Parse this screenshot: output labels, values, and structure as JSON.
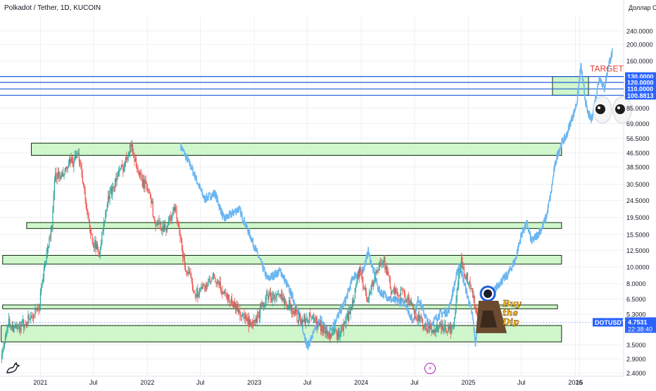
{
  "header": {
    "title": "Polkadot / Tether, 1D, KUCOIN",
    "currency": "Доллар США"
  },
  "chart_data": {
    "type": "line",
    "scale": "log",
    "ylim": [
      2.3,
      290
    ],
    "y_ticks": [
      "240.0000",
      "200.0000",
      "160.0000",
      "85.0000",
      "69.0000",
      "56.5000",
      "46.5000",
      "38.5000",
      "30.5000",
      "24.5000",
      "19.5000",
      "15.5000",
      "12.5000",
      "10.0000",
      "8.0000",
      "6.5000",
      "5.3000",
      "3.5000",
      "2.9000",
      "2.4000"
    ],
    "x_ticks": [
      {
        "label": "2021",
        "date": "2021-01-01"
      },
      {
        "label": "Jul",
        "date": "2021-07-01"
      },
      {
        "label": "2022",
        "date": "2022-01-01"
      },
      {
        "label": "Jul",
        "date": "2022-07-01"
      },
      {
        "label": "2023",
        "date": "2023-01-01"
      },
      {
        "label": "Jul",
        "date": "2023-07-01"
      },
      {
        "label": "2024",
        "date": "2024-01-01"
      },
      {
        "label": "Jul",
        "date": "2024-07-01"
      },
      {
        "label": "2025",
        "date": "2025-01-01"
      },
      {
        "label": "Jul",
        "date": "2025-07-01"
      },
      {
        "label": "2026",
        "date": "2026-01-01"
      },
      {
        "label": "15",
        "date": "2026-01-15"
      }
    ],
    "level_lines": [
      {
        "value": 130,
        "label": "130.0000"
      },
      {
        "value": 120,
        "label": "120.0000"
      },
      {
        "value": 110,
        "label": "110.0000"
      },
      {
        "value": 100.8813,
        "label": "100.8813"
      }
    ],
    "zones": [
      {
        "low": 100.88,
        "high": 130,
        "x_start": "2025-10-15",
        "x_end": "2026-02-15"
      },
      {
        "low": 45,
        "high": 53,
        "x_start": "2020-12-01",
        "x_end": "2025-11-15"
      },
      {
        "low": 16.8,
        "high": 18.2,
        "x_start": "2020-11-15",
        "x_end": "2025-11-15"
      },
      {
        "low": 10.4,
        "high": 11.7,
        "x_start": "2020-08-25",
        "x_end": "2025-11-15"
      },
      {
        "low": 5.7,
        "high": 6.0,
        "x_start": "2020-08-25",
        "x_end": "2025-11-01"
      },
      {
        "low": 3.65,
        "high": 4.55,
        "x_start": "2020-08-20",
        "x_end": "2025-11-15"
      }
    ],
    "price_series": {
      "name": "DOTUSDT",
      "points": [
        [
          "2020-08-22",
          2.9
        ],
        [
          "2020-09-10",
          4.8
        ],
        [
          "2020-10-15",
          4.2
        ],
        [
          "2020-11-20",
          5.0
        ],
        [
          "2020-12-25",
          5.5
        ],
        [
          "2021-01-10",
          9.0
        ],
        [
          "2021-02-10",
          18.0
        ],
        [
          "2021-02-20",
          35.0
        ],
        [
          "2021-03-15",
          33.0
        ],
        [
          "2021-04-10",
          40.0
        ],
        [
          "2021-05-15",
          44.0
        ],
        [
          "2021-06-20",
          15.5
        ],
        [
          "2021-07-20",
          12.0
        ],
        [
          "2021-08-20",
          25.0
        ],
        [
          "2021-09-20",
          34.0
        ],
        [
          "2021-10-15",
          40.0
        ],
        [
          "2021-11-04",
          53.0
        ],
        [
          "2021-12-10",
          32.0
        ],
        [
          "2022-01-10",
          28.0
        ],
        [
          "2022-01-25",
          18.0
        ],
        [
          "2022-03-05",
          17.0
        ],
        [
          "2022-04-05",
          22.0
        ],
        [
          "2022-05-10",
          10.0
        ],
        [
          "2022-06-15",
          7.0
        ],
        [
          "2022-08-15",
          8.5
        ],
        [
          "2022-10-15",
          6.3
        ],
        [
          "2022-12-25",
          4.4
        ],
        [
          "2023-02-15",
          6.8
        ],
        [
          "2023-04-15",
          6.5
        ],
        [
          "2023-06-10",
          4.8
        ],
        [
          "2023-07-15",
          5.2
        ],
        [
          "2023-09-10",
          4.0
        ],
        [
          "2023-10-20",
          4.1
        ],
        [
          "2023-11-25",
          5.5
        ],
        [
          "2023-12-25",
          9.5
        ],
        [
          "2024-01-20",
          6.5
        ],
        [
          "2024-03-15",
          11.5
        ],
        [
          "2024-04-15",
          7.0
        ],
        [
          "2024-05-20",
          7.2
        ],
        [
          "2024-07-05",
          5.3
        ],
        [
          "2024-08-10",
          4.3
        ],
        [
          "2024-09-25",
          4.4
        ],
        [
          "2024-11-10",
          4.3
        ],
        [
          "2024-12-05",
          11.0
        ],
        [
          "2025-01-10",
          7.5
        ],
        [
          "2025-02-05",
          4.8
        ],
        [
          "2025-02-20",
          5.0
        ]
      ]
    },
    "projection_series": {
      "points": [
        [
          "2022-04-25",
          51
        ],
        [
          "2022-06-01",
          38
        ],
        [
          "2022-07-15",
          25
        ],
        [
          "2022-08-20",
          27
        ],
        [
          "2022-09-20",
          19
        ],
        [
          "2022-11-10",
          22
        ],
        [
          "2022-12-20",
          15
        ],
        [
          "2023-01-20",
          11
        ],
        [
          "2023-02-15",
          8.5
        ],
        [
          "2023-04-01",
          9.5
        ],
        [
          "2023-05-15",
          6.5
        ],
        [
          "2023-06-15",
          4.5
        ],
        [
          "2023-07-01",
          3.4
        ],
        [
          "2023-08-15",
          5
        ],
        [
          "2023-09-10",
          4.1
        ],
        [
          "2023-10-15",
          5.2
        ],
        [
          "2023-11-10",
          6.5
        ],
        [
          "2023-12-05",
          8.8
        ],
        [
          "2024-01-10",
          9.8
        ],
        [
          "2024-01-25",
          12.3
        ],
        [
          "2024-03-01",
          7.3
        ],
        [
          "2024-04-15",
          6.4
        ],
        [
          "2024-05-30",
          6.2
        ],
        [
          "2024-06-25",
          4.8
        ],
        [
          "2024-07-15",
          6.6
        ],
        [
          "2024-08-20",
          4.5
        ],
        [
          "2024-09-25",
          5.3
        ],
        [
          "2024-10-25",
          5.5
        ],
        [
          "2024-12-01",
          10.5
        ],
        [
          "2025-01-15",
          5.2
        ],
        [
          "2025-01-25",
          3.6
        ],
        [
          "2025-02-10",
          5.5
        ],
        [
          "2025-03-15",
          6.6
        ],
        [
          "2025-04-15",
          8.0
        ],
        [
          "2025-05-15",
          9.0
        ],
        [
          "2025-06-10",
          11.0
        ],
        [
          "2025-07-01",
          15.5
        ],
        [
          "2025-07-20",
          18.0
        ],
        [
          "2025-08-05",
          14.0
        ],
        [
          "2025-08-25",
          15.5
        ],
        [
          "2025-09-10",
          17.0
        ],
        [
          "2025-09-25",
          20.0
        ],
        [
          "2025-10-10",
          27.0
        ],
        [
          "2025-10-22",
          38.0
        ],
        [
          "2025-11-02",
          46.0
        ],
        [
          "2025-11-15",
          53.0
        ],
        [
          "2025-12-01",
          58.0
        ],
        [
          "2025-12-15",
          70.0
        ],
        [
          "2025-12-28",
          80.0
        ],
        [
          "2026-01-08",
          95.0
        ],
        [
          "2026-01-20",
          150.0
        ],
        [
          "2026-02-01",
          105.0
        ],
        [
          "2026-02-10",
          82.0
        ],
        [
          "2026-02-25",
          72.0
        ],
        [
          "2026-03-10",
          95.0
        ],
        [
          "2026-03-25",
          130.0
        ],
        [
          "2026-04-10",
          110.0
        ],
        [
          "2026-04-25",
          155.0
        ],
        [
          "2026-05-08",
          180.0
        ]
      ]
    },
    "current_price": {
      "symbol": "DOTUSDT",
      "value": 4.7531,
      "label": "4.7531",
      "countdown": "22:38:40"
    },
    "annotations": [
      {
        "text": "TARGET",
        "date": "2026-02-10",
        "value": 150
      }
    ],
    "sticker": {
      "lines": [
        "Buy",
        "the",
        "Dip"
      ],
      "date": "2025-03-01",
      "value": 4.6
    },
    "colors": {
      "up": "#26a69a",
      "down": "#ef5350",
      "projection": "#6cb6f0",
      "zone_fill": "#c8f5c3",
      "zone_border": "#0b2e0b",
      "level_line": "#1e5bd8",
      "level_tag": "#2962ff",
      "target": "#e53935",
      "price_tag": "#2962ff",
      "grid": "#eef0f3",
      "text": "#131722"
    }
  }
}
